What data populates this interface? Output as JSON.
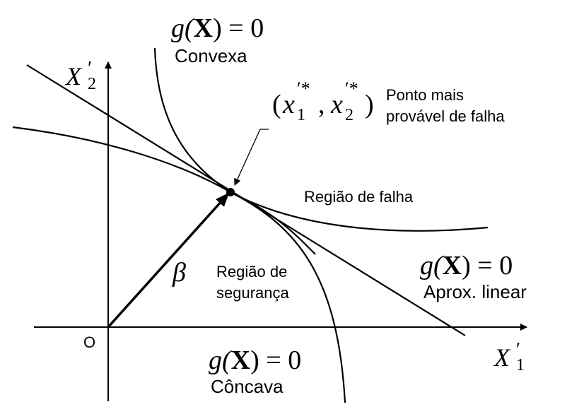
{
  "axes": {
    "x_label": "X",
    "x_prime": "′",
    "x_sub": "1",
    "y_label": "X",
    "y_prime": "′",
    "y_sub": "2",
    "origin_label": "O"
  },
  "labels": {
    "convex_eq_prefix": "g(",
    "convex_eq_bold": "X",
    "convex_eq_suffix": ") = 0",
    "convex_name": "Convexa",
    "concave_eq_prefix": "g(",
    "concave_eq_bold": "X",
    "concave_eq_suffix": ") = 0",
    "concave_name": "Côncava",
    "linear_eq_prefix": "g(",
    "linear_eq_bold": "X",
    "linear_eq_suffix": ") = 0",
    "linear_name": "Aprox. linear",
    "failure_region": "Região de falha",
    "safe_region_line1": "Região de",
    "safe_region_line2": "segurança",
    "beta": "β",
    "design_point_line1": "Ponto mais",
    "design_point_line2": "provável de falha",
    "design_point_open": "(",
    "design_point_x": "x",
    "design_point_sep": ",",
    "design_point_close": ")",
    "design_point_sup": "′*",
    "design_point_sub1": "1",
    "design_point_sub2": "2"
  },
  "style": {
    "line_color": "#000000",
    "background": "#ffffff"
  }
}
